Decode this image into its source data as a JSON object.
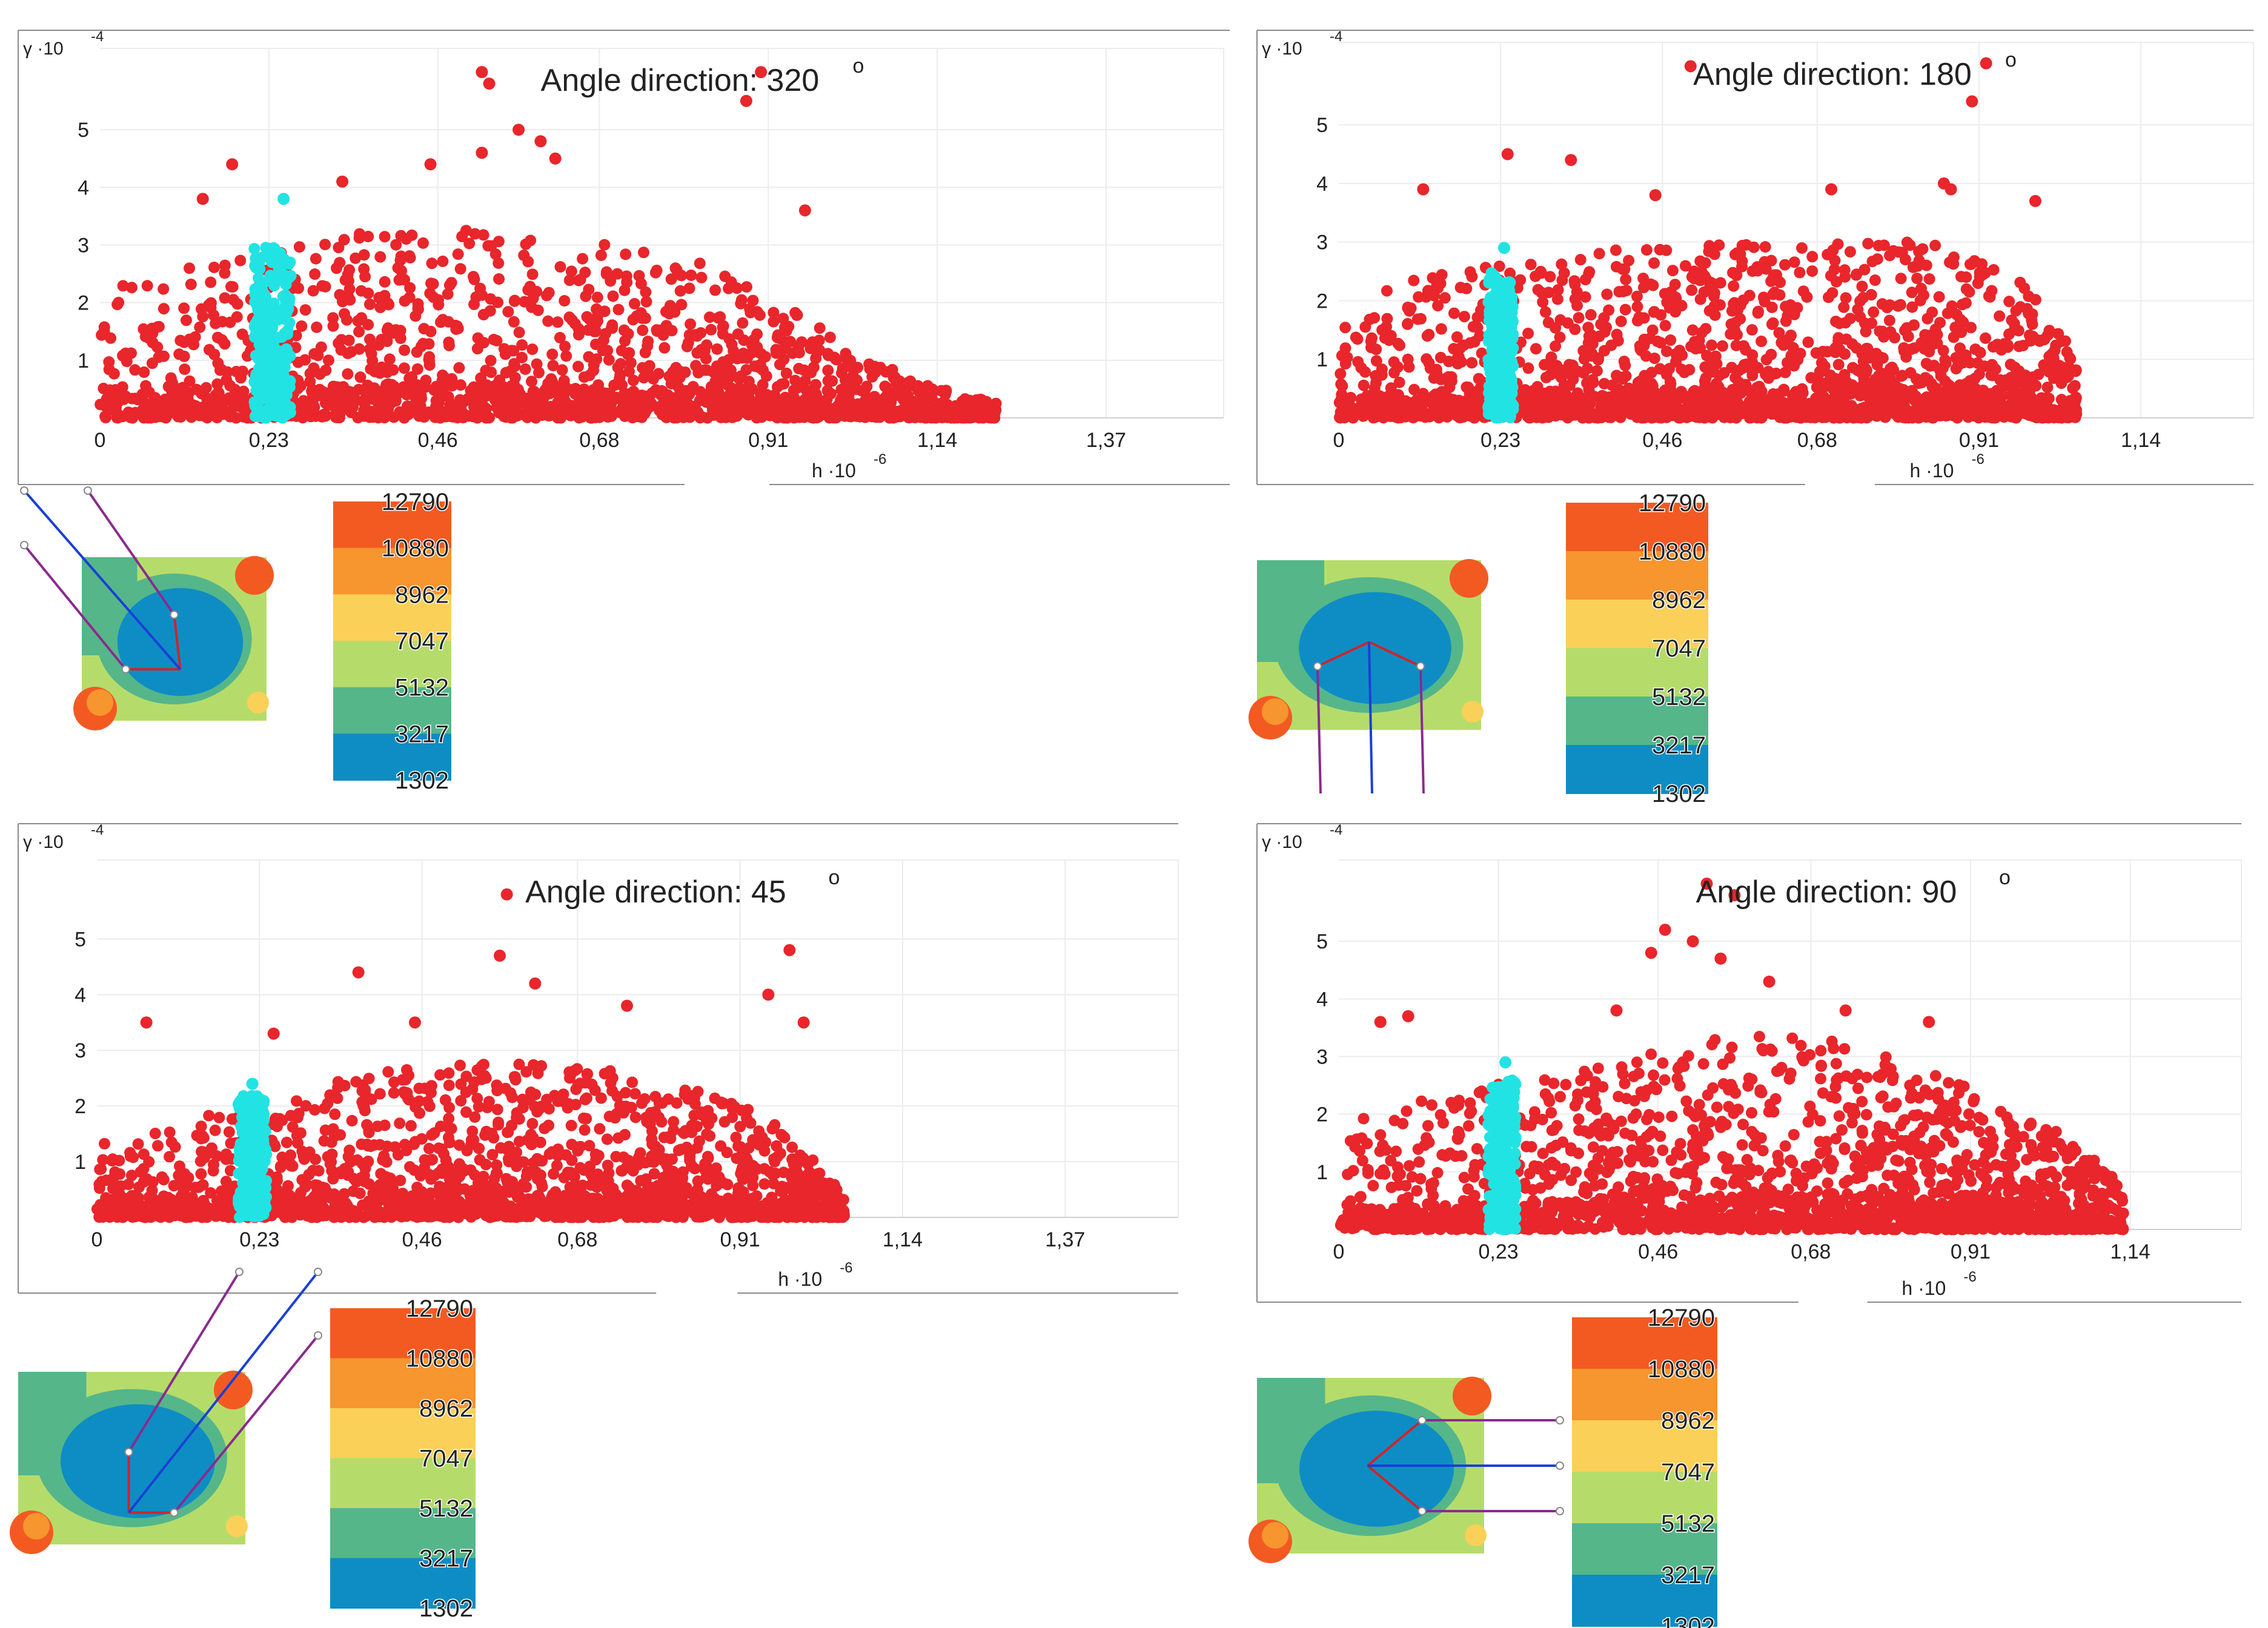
{
  "chart_data": [
    {
      "type": "scatter",
      "title": "Angle direction: 320",
      "title_sup": "o",
      "xlabel": "h",
      "xlabel_exp": "-6",
      "ylabel": "γ",
      "ylabel_exp": "-4",
      "x_ticks": [
        "0",
        "0,23",
        "0,46",
        "0,68",
        "0,91",
        "1,14",
        "1,37"
      ],
      "y_ticks": [
        "1",
        "2",
        "3",
        "4",
        "5"
      ],
      "xlim": [
        0,
        1.53
      ],
      "ylim": [
        0,
        6.2
      ],
      "series": [
        {
          "color": "#e8262b",
          "x_max": 1.22,
          "envelope": [
            [
              0,
              2.2
            ],
            [
              0.1,
              2.6
            ],
            [
              0.25,
              3.0
            ],
            [
              0.4,
              3.3
            ],
            [
              0.55,
              3.3
            ],
            [
              0.7,
              3.0
            ],
            [
              0.85,
              2.6
            ],
            [
              0.95,
              1.8
            ],
            [
              1.05,
              1.0
            ],
            [
              1.15,
              0.5
            ],
            [
              1.22,
              0.25
            ]
          ],
          "outliers": [
            [
              0.52,
              6.0
            ],
            [
              0.53,
              5.8
            ],
            [
              0.88,
              5.5
            ],
            [
              0.9,
              6.0
            ],
            [
              0.57,
              5.0
            ],
            [
              0.52,
              4.6
            ],
            [
              0.6,
              4.8
            ],
            [
              0.18,
              4.4
            ],
            [
              0.33,
              4.1
            ],
            [
              0.45,
              4.4
            ],
            [
              0.96,
              3.6
            ],
            [
              0.14,
              3.8
            ],
            [
              0.62,
              4.5
            ]
          ]
        },
        {
          "color": "#22e3e3",
          "x_center": 0.235,
          "x_spread": 0.025,
          "y_max": 3.0,
          "outliers": [
            [
              0.25,
              3.8
            ]
          ]
        }
      ],
      "colorbar": {
        "labels": [
          "12790",
          "10880",
          "8962",
          "7047",
          "5132",
          "3217",
          "1302"
        ],
        "colors": [
          "#f25a22",
          "#f7952e",
          "#fbd058",
          "#b5dc6b",
          "#55b68a",
          "#0e8dc4"
        ]
      },
      "angle_deg": 320
    },
    {
      "type": "scatter",
      "title": "Angle direction: 180",
      "title_sup": "o",
      "xlabel": "h",
      "xlabel_exp": "-6",
      "ylabel": "γ",
      "ylabel_exp": "-4",
      "x_ticks": [
        "0",
        "0,23",
        "0,46",
        "0,68",
        "0,91",
        "1,14"
      ],
      "y_ticks": [
        "1",
        "2",
        "3",
        "4",
        "5"
      ],
      "xlim": [
        0,
        1.3
      ],
      "ylim": [
        0,
        6.2
      ],
      "series": [
        {
          "color": "#e8262b",
          "x_max": 1.05,
          "envelope": [
            [
              0,
              2.0
            ],
            [
              0.1,
              2.4
            ],
            [
              0.25,
              2.7
            ],
            [
              0.4,
              2.9
            ],
            [
              0.55,
              3.0
            ],
            [
              0.7,
              3.0
            ],
            [
              0.85,
              3.0
            ],
            [
              0.95,
              2.6
            ],
            [
              1.0,
              2.0
            ],
            [
              1.05,
              1.0
            ]
          ],
          "outliers": [
            [
              0.5,
              6.0
            ],
            [
              0.92,
              6.05
            ],
            [
              0.9,
              5.4
            ],
            [
              0.33,
              4.4
            ],
            [
              0.24,
              4.5
            ],
            [
              0.86,
              4.0
            ],
            [
              0.87,
              3.9
            ],
            [
              0.12,
              3.9
            ],
            [
              0.99,
              3.7
            ],
            [
              0.45,
              3.8
            ],
            [
              0.7,
              3.9
            ]
          ]
        },
        {
          "color": "#22e3e3",
          "x_center": 0.23,
          "x_spread": 0.018,
          "y_max": 2.5,
          "outliers": [
            [
              0.235,
              2.9
            ]
          ]
        }
      ],
      "colorbar": {
        "labels": [
          "12790",
          "10880",
          "8962",
          "7047",
          "5132",
          "3217",
          "1302"
        ],
        "colors": [
          "#f25a22",
          "#f7952e",
          "#fbd058",
          "#b5dc6b",
          "#55b68a",
          "#0e8dc4"
        ]
      },
      "angle_deg": 180
    },
    {
      "type": "scatter",
      "title": "Angle direction: 45",
      "title_sup": "o",
      "xlabel": "h",
      "xlabel_exp": "-6",
      "ylabel": "γ",
      "ylabel_exp": "-4",
      "x_ticks": [
        "0",
        "0,23",
        "0,46",
        "0,68",
        "0,91",
        "1,14",
        "1,37"
      ],
      "y_ticks": [
        "1",
        "2",
        "3",
        "4",
        "5"
      ],
      "xlim": [
        0,
        1.53
      ],
      "ylim": [
        0,
        6.2
      ],
      "series": [
        {
          "color": "#e8262b",
          "x_max": 1.06,
          "envelope": [
            [
              0,
              1.3
            ],
            [
              0.1,
              1.6
            ],
            [
              0.25,
              2.2
            ],
            [
              0.4,
              2.6
            ],
            [
              0.55,
              2.8
            ],
            [
              0.7,
              2.7
            ],
            [
              0.85,
              2.3
            ],
            [
              0.95,
              1.8
            ],
            [
              1.02,
              1.0
            ],
            [
              1.06,
              0.3
            ]
          ],
          "outliers": [
            [
              0.58,
              5.8
            ],
            [
              0.98,
              4.8
            ],
            [
              0.57,
              4.7
            ],
            [
              0.37,
              4.4
            ],
            [
              0.62,
              4.2
            ],
            [
              0.07,
              3.5
            ],
            [
              0.95,
              4.0
            ],
            [
              1.0,
              3.5
            ],
            [
              0.25,
              3.3
            ],
            [
              0.45,
              3.5
            ],
            [
              0.75,
              3.8
            ]
          ]
        },
        {
          "color": "#22e3e3",
          "x_center": 0.22,
          "x_spread": 0.02,
          "y_max": 2.2,
          "outliers": [
            [
              0.22,
              2.4
            ]
          ]
        }
      ],
      "colorbar": {
        "labels": [
          "12790",
          "10880",
          "8962",
          "7047",
          "5132",
          "3217",
          "1302"
        ],
        "colors": [
          "#f25a22",
          "#f7952e",
          "#fbd058",
          "#b5dc6b",
          "#55b68a",
          "#0e8dc4"
        ]
      },
      "angle_deg": 45
    },
    {
      "type": "scatter",
      "title": "Angle direction: 90",
      "title_sup": "o",
      "xlabel": "h",
      "xlabel_exp": "-6",
      "ylabel": "γ",
      "ylabel_exp": "-4",
      "x_ticks": [
        "0",
        "0,23",
        "0,46",
        "0,68",
        "0,91",
        "1,14"
      ],
      "y_ticks": [
        "1",
        "2",
        "3",
        "4",
        "5"
      ],
      "xlim": [
        0,
        1.3
      ],
      "ylim": [
        0,
        6.2
      ],
      "series": [
        {
          "color": "#e8262b",
          "x_max": 1.13,
          "envelope": [
            [
              0,
              1.8
            ],
            [
              0.1,
              2.2
            ],
            [
              0.25,
              2.6
            ],
            [
              0.4,
              3.0
            ],
            [
              0.55,
              3.4
            ],
            [
              0.7,
              3.3
            ],
            [
              0.85,
              2.8
            ],
            [
              0.95,
              2.2
            ],
            [
              1.05,
              1.6
            ],
            [
              1.13,
              0.8
            ]
          ],
          "outliers": [
            [
              0.53,
              6.0
            ],
            [
              0.57,
              5.8
            ],
            [
              0.47,
              5.2
            ],
            [
              0.51,
              5.0
            ],
            [
              0.55,
              4.7
            ],
            [
              0.45,
              4.8
            ],
            [
              0.62,
              4.3
            ],
            [
              0.06,
              3.6
            ],
            [
              0.1,
              3.7
            ],
            [
              0.85,
              3.6
            ],
            [
              0.73,
              3.8
            ],
            [
              0.4,
              3.8
            ]
          ]
        },
        {
          "color": "#22e3e3",
          "x_center": 0.235,
          "x_spread": 0.02,
          "y_max": 2.6,
          "outliers": [
            [
              0.24,
              2.9
            ]
          ]
        }
      ],
      "colorbar": {
        "labels": [
          "12790",
          "10880",
          "8962",
          "7047",
          "5132",
          "3217",
          "1302"
        ],
        "colors": [
          "#f25a22",
          "#f7952e",
          "#fbd058",
          "#b5dc6b",
          "#55b68a",
          "#0e8dc4"
        ]
      },
      "angle_deg": 90
    }
  ]
}
